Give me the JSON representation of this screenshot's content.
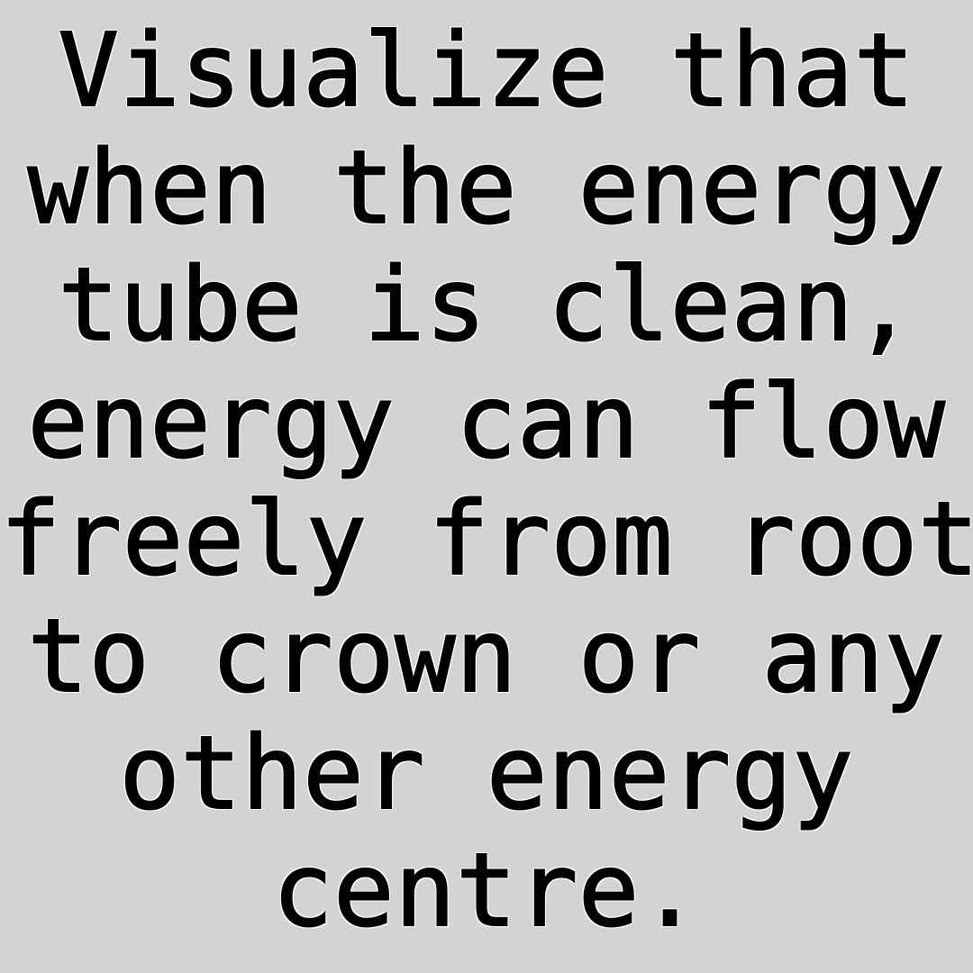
{
  "quote": {
    "lines": [
      "Visualize that",
      "when the energy",
      "tube is clean,",
      "energy can flow",
      "freely from root",
      "to crown or any",
      "other energy",
      "centre."
    ]
  },
  "colors": {
    "background": "#d3d3d3",
    "text": "#000000",
    "outline": "#ffffff"
  }
}
